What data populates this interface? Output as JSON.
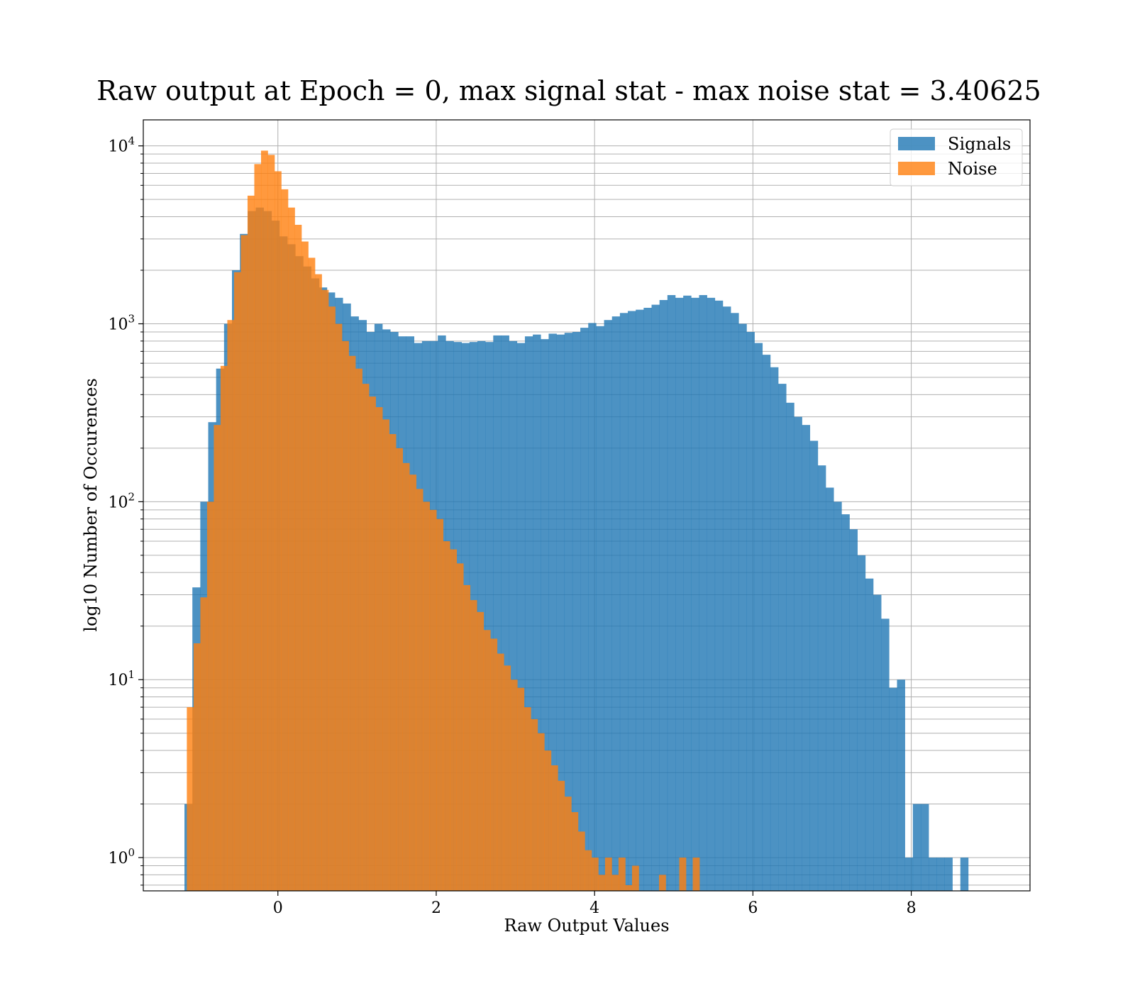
{
  "chart_data": {
    "type": "bar",
    "title": "Raw output at Epoch = 0, max signal stat - max noise stat = 3.40625",
    "xlabel": "Raw Output Values",
    "ylabel": "log10 Number of Occurences",
    "yscale": "log",
    "xlim": [
      -1.7,
      9.5
    ],
    "ylim": [
      0.65,
      14000
    ],
    "xticks": [
      0,
      2,
      4,
      6,
      8
    ],
    "yticks": [
      {
        "base": "10",
        "exp": "0",
        "value": 1
      },
      {
        "base": "10",
        "exp": "1",
        "value": 10
      },
      {
        "base": "10",
        "exp": "2",
        "value": 100
      },
      {
        "base": "10",
        "exp": "3",
        "value": 1000
      },
      {
        "base": "10",
        "exp": "4",
        "value": 10000
      }
    ],
    "grid": true,
    "legend_position": "top-right",
    "series": [
      {
        "name": "Signals",
        "color": "#1f77b4",
        "opacity": 0.8,
        "bin_start": -1.18,
        "bin_width": 0.1,
        "values": [
          2,
          33,
          100,
          280,
          560,
          1000,
          2000,
          3200,
          4300,
          4500,
          4300,
          3800,
          3100,
          2800,
          2400,
          2100,
          1800,
          1600,
          1500,
          1400,
          1300,
          1100,
          1050,
          900,
          1000,
          930,
          900,
          850,
          850,
          780,
          800,
          800,
          860,
          800,
          790,
          780,
          790,
          800,
          790,
          860,
          860,
          800,
          780,
          850,
          870,
          820,
          880,
          870,
          890,
          900,
          950,
          1010,
          970,
          1050,
          1100,
          1150,
          1180,
          1200,
          1230,
          1280,
          1360,
          1450,
          1400,
          1440,
          1400,
          1450,
          1400,
          1350,
          1250,
          1150,
          1000,
          900,
          780,
          670,
          570,
          460,
          360,
          300,
          270,
          220,
          160,
          120,
          100,
          85,
          70,
          50,
          37,
          30,
          22,
          9,
          10,
          1,
          2,
          2,
          1,
          1,
          1,
          0,
          1
        ]
      },
      {
        "name": "Noise",
        "color": "#ff7f0e",
        "opacity": 0.8,
        "bin_start": -1.15,
        "bin_width": 0.0852,
        "values": [
          7,
          16,
          29,
          100,
          270,
          580,
          1050,
          1950,
          3150,
          5250,
          7900,
          9400,
          8900,
          7200,
          5700,
          4500,
          3600,
          2900,
          2350,
          1900,
          1550,
          1250,
          1000,
          800,
          660,
          560,
          460,
          390,
          340,
          290,
          240,
          200,
          165,
          142,
          118,
          100,
          90,
          80,
          60,
          54,
          45,
          34,
          28,
          24,
          19,
          17,
          14,
          12,
          10,
          9,
          7,
          6,
          5,
          4,
          3.3,
          2.7,
          2.2,
          1.8,
          1.4,
          1.1,
          1,
          0.8,
          1,
          0.8,
          1,
          0.7,
          0.9,
          0.6,
          0.6,
          0.6,
          0.8,
          0.6,
          0.6,
          1,
          0.6,
          1
        ]
      }
    ]
  }
}
